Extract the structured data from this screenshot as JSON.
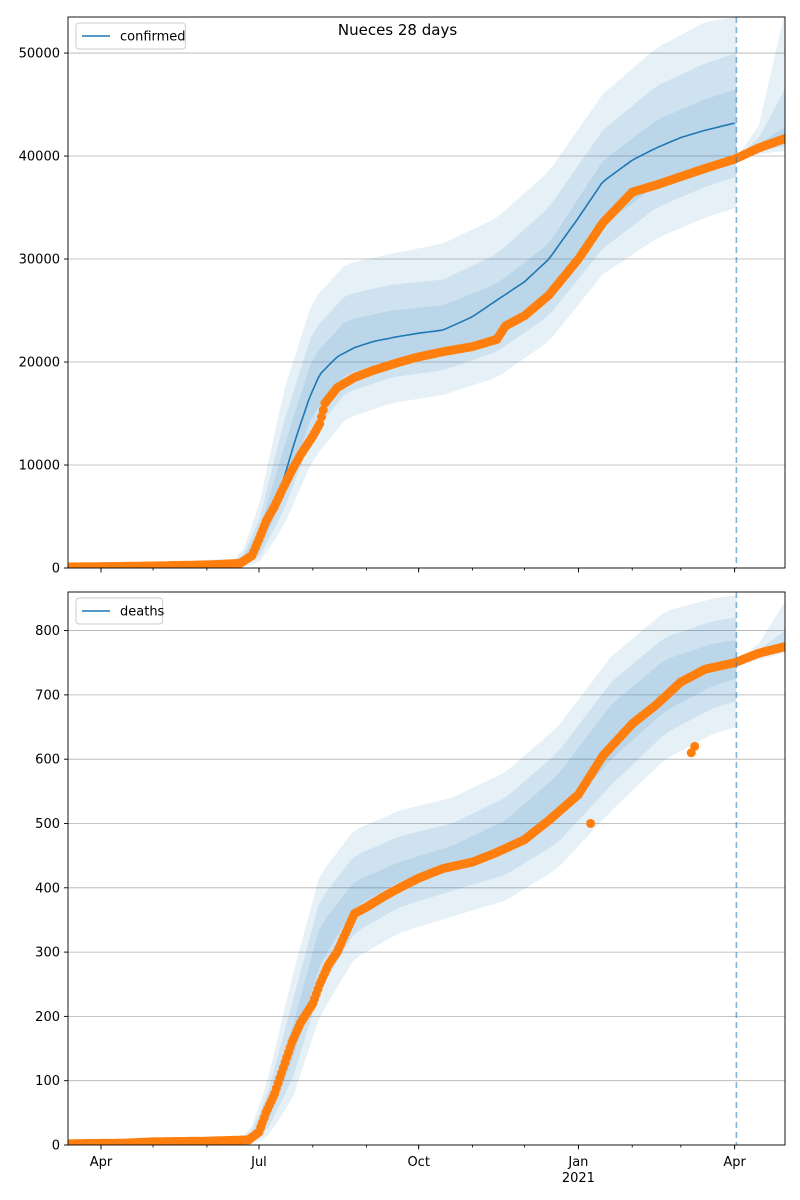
{
  "figure": {
    "title": "Nueces 28 days"
  },
  "chart_data": [
    {
      "type": "line",
      "legend": {
        "entries": [
          "confirmed"
        ],
        "placement": "upper-left"
      },
      "x_tick_labels": [
        "Apr",
        "Jul",
        "Oct",
        "Jan",
        "Apr"
      ],
      "x_tick_sublabels": [
        "",
        "",
        "",
        "2021",
        ""
      ],
      "xlim": [
        "2020-03-13",
        "2021-04-30"
      ],
      "ylim": [
        0,
        53500
      ],
      "y_ticks": [
        0,
        10000,
        20000,
        30000,
        40000,
        50000
      ],
      "grid": "y",
      "forecast_start": "2021-04-02",
      "model": {
        "name": "confirmed",
        "color": "#1f77b4",
        "x": [
          "2020-03-13",
          "2020-06-15",
          "2020-06-25",
          "2020-07-01",
          "2020-07-08",
          "2020-07-15",
          "2020-07-22",
          "2020-07-30",
          "2020-08-05",
          "2020-08-15",
          "2020-08-25",
          "2020-09-05",
          "2020-09-20",
          "2020-10-01",
          "2020-10-15",
          "2020-11-01",
          "2020-11-15",
          "2020-12-01",
          "2020-12-15",
          "2021-01-01",
          "2021-01-15",
          "2021-02-01",
          "2021-02-15",
          "2021-03-01",
          "2021-03-15",
          "2021-04-01"
        ],
        "y": [
          100,
          300,
          600,
          2200,
          4800,
          8500,
          12500,
          16500,
          18800,
          20500,
          21400,
          22000,
          22500,
          22800,
          23100,
          24400,
          26000,
          27800,
          30000,
          34000,
          37500,
          39600,
          40800,
          41800,
          42500,
          43200
        ]
      },
      "bands": [
        {
          "x": [
            "2020-03-13",
            "2020-06-20",
            "2020-07-01",
            "2020-07-15",
            "2020-08-01",
            "2020-08-20",
            "2020-09-15",
            "2020-10-15",
            "2020-11-15",
            "2020-12-15",
            "2021-01-15",
            "2021-02-15",
            "2021-03-15",
            "2021-04-02"
          ],
          "low": [
            0,
            0,
            500,
            4000,
            10500,
            14500,
            16000,
            16800,
            18500,
            22000,
            28500,
            32000,
            34000,
            35000
          ],
          "high": [
            300,
            900,
            6000,
            17000,
            26000,
            29500,
            30500,
            31500,
            34000,
            38500,
            46000,
            50500,
            53000,
            53500
          ]
        },
        {
          "x": [
            "2020-03-13",
            "2020-06-20",
            "2020-07-01",
            "2020-07-15",
            "2020-08-01",
            "2020-08-20",
            "2020-09-15",
            "2020-10-15",
            "2020-11-15",
            "2020-12-15",
            "2021-01-15",
            "2021-02-15",
            "2021-03-15",
            "2021-04-02"
          ],
          "low": [
            0,
            100,
            1000,
            5500,
            13000,
            17000,
            18500,
            19200,
            21000,
            24500,
            31000,
            35000,
            37000,
            38000
          ],
          "high": [
            250,
            700,
            4500,
            14000,
            23000,
            26500,
            27500,
            28000,
            30500,
            35000,
            42500,
            46800,
            49000,
            50000
          ]
        },
        {
          "x": [
            "2020-03-13",
            "2020-06-20",
            "2020-07-01",
            "2020-07-15",
            "2020-08-01",
            "2020-08-20",
            "2020-09-15",
            "2020-10-15",
            "2020-11-15",
            "2020-12-15",
            "2021-01-15",
            "2021-02-15",
            "2021-03-15",
            "2021-04-02"
          ],
          "low": [
            50,
            200,
            1500,
            7000,
            15000,
            18800,
            20200,
            20800,
            22500,
            26300,
            33200,
            37200,
            39300,
            40200
          ],
          "high": [
            200,
            550,
            3500,
            11500,
            20500,
            24000,
            25000,
            25500,
            27600,
            31500,
            39500,
            43500,
            45500,
            46500
          ]
        }
      ],
      "observed": {
        "color": "#ff7f0e",
        "x": [
          "2020-03-13",
          "2020-04-10",
          "2020-05-01",
          "2020-06-01",
          "2020-06-20",
          "2020-06-27",
          "2020-07-01",
          "2020-07-05",
          "2020-07-10",
          "2020-07-15",
          "2020-07-20",
          "2020-07-25",
          "2020-08-01",
          "2020-08-05",
          "2020-08-08",
          "2020-08-15",
          "2020-08-25",
          "2020-09-05",
          "2020-09-20",
          "2020-10-01",
          "2020-10-15",
          "2020-11-01",
          "2020-11-15",
          "2020-11-20",
          "2020-12-01",
          "2020-12-15",
          "2021-01-01",
          "2021-01-15",
          "2021-02-01",
          "2021-02-15",
          "2021-03-01",
          "2021-03-15",
          "2021-04-01",
          "2021-04-15",
          "2021-04-30"
        ],
        "y": [
          100,
          150,
          200,
          300,
          450,
          1200,
          2800,
          4500,
          6000,
          7800,
          9500,
          11000,
          12800,
          14000,
          16000,
          17500,
          18500,
          19200,
          20000,
          20500,
          21000,
          21500,
          22200,
          23500,
          24500,
          26500,
          30000,
          33500,
          36500,
          37200,
          38000,
          38800,
          39700,
          40800,
          41700
        ]
      },
      "projection_bands": [
        {
          "x": [
            "2021-04-02",
            "2021-04-15",
            "2021-04-30"
          ],
          "low": [
            39600,
            40200,
            40500
          ],
          "high": [
            39800,
            43000,
            54000
          ]
        },
        {
          "x": [
            "2021-04-02",
            "2021-04-15",
            "2021-04-30"
          ],
          "low": [
            39700,
            40400,
            41000
          ],
          "high": [
            39800,
            41800,
            46500
          ]
        },
        {
          "x": [
            "2021-04-02",
            "2021-04-15",
            "2021-04-30"
          ],
          "low": [
            39750,
            40600,
            41400
          ],
          "high": [
            39800,
            41200,
            42800
          ]
        }
      ]
    },
    {
      "type": "line",
      "legend": {
        "entries": [
          "deaths"
        ],
        "placement": "upper-left"
      },
      "x_tick_labels": [
        "Apr",
        "Jul",
        "Oct",
        "Jan",
        "Apr"
      ],
      "x_tick_sublabels": [
        "",
        "",
        "",
        "2021",
        ""
      ],
      "xlim": [
        "2020-03-13",
        "2021-04-30"
      ],
      "ylim": [
        0,
        860
      ],
      "y_ticks": [
        0,
        100,
        200,
        300,
        400,
        500,
        600,
        700,
        800
      ],
      "grid": "y",
      "forecast_start": "2021-04-02",
      "model": {
        "name": "deaths",
        "color": "#1f77b4",
        "x": [],
        "y": []
      },
      "bands": [
        {
          "x": [
            "2020-03-13",
            "2020-06-25",
            "2020-07-05",
            "2020-07-20",
            "2020-08-05",
            "2020-08-25",
            "2020-09-20",
            "2020-10-20",
            "2020-11-20",
            "2020-12-20",
            "2021-01-20",
            "2021-02-20",
            "2021-03-20",
            "2021-04-02"
          ],
          "low": [
            0,
            0,
            10,
            70,
            200,
            290,
            330,
            355,
            380,
            430,
            520,
            600,
            640,
            650
          ],
          "high": [
            5,
            15,
            90,
            260,
            420,
            490,
            520,
            540,
            580,
            650,
            760,
            830,
            850,
            855
          ]
        },
        {
          "x": [
            "2020-03-13",
            "2020-06-25",
            "2020-07-05",
            "2020-07-20",
            "2020-08-05",
            "2020-08-25",
            "2020-09-20",
            "2020-10-20",
            "2020-11-20",
            "2020-12-20",
            "2021-01-20",
            "2021-02-20",
            "2021-03-20",
            "2021-04-02"
          ],
          "low": [
            0,
            2,
            20,
            100,
            240,
            330,
            370,
            395,
            420,
            470,
            560,
            640,
            680,
            690
          ],
          "high": [
            4,
            12,
            70,
            220,
            380,
            450,
            480,
            500,
            540,
            610,
            720,
            790,
            815,
            820
          ]
        },
        {
          "x": [
            "2020-03-13",
            "2020-06-25",
            "2020-07-05",
            "2020-07-20",
            "2020-08-05",
            "2020-08-25",
            "2020-09-20",
            "2020-10-20",
            "2020-11-20",
            "2020-12-20",
            "2021-01-20",
            "2021-02-20",
            "2021-03-20",
            "2021-04-02"
          ],
          "low": [
            1,
            4,
            30,
            130,
            280,
            370,
            410,
            430,
            455,
            505,
            600,
            675,
            715,
            725
          ],
          "high": [
            3,
            9,
            55,
            180,
            340,
            410,
            440,
            465,
            505,
            575,
            685,
            755,
            780,
            785
          ]
        }
      ],
      "observed": {
        "color": "#ff7f0e",
        "x": [
          "2020-03-13",
          "2020-04-15",
          "2020-05-01",
          "2020-06-01",
          "2020-06-25",
          "2020-07-01",
          "2020-07-05",
          "2020-07-10",
          "2020-07-15",
          "2020-07-20",
          "2020-07-25",
          "2020-08-01",
          "2020-08-05",
          "2020-08-10",
          "2020-08-15",
          "2020-08-20",
          "2020-08-25",
          "2020-09-01",
          "2020-09-10",
          "2020-09-20",
          "2020-10-01",
          "2020-10-15",
          "2020-11-01",
          "2020-11-15",
          "2020-12-01",
          "2020-12-15",
          "2021-01-01",
          "2021-01-15",
          "2021-02-01",
          "2021-02-15",
          "2021-03-01",
          "2021-03-15",
          "2021-04-01",
          "2021-04-15",
          "2021-04-30"
        ],
        "y": [
          2,
          3,
          5,
          6,
          8,
          20,
          50,
          80,
          120,
          160,
          190,
          220,
          250,
          280,
          300,
          330,
          360,
          370,
          385,
          400,
          415,
          430,
          440,
          455,
          475,
          505,
          545,
          605,
          655,
          685,
          720,
          740,
          750,
          765,
          775
        ],
        "outliers": {
          "x": [
            "2021-01-08",
            "2021-03-07",
            "2021-03-09"
          ],
          "y": [
            500,
            610,
            620
          ]
        }
      },
      "projection_bands": [
        {
          "x": [
            "2021-04-02",
            "2021-04-15",
            "2021-04-30"
          ],
          "low": [
            748,
            755,
            765
          ],
          "high": [
            752,
            780,
            845
          ]
        },
        {
          "x": [
            "2021-04-02",
            "2021-04-15",
            "2021-04-30"
          ],
          "low": [
            749,
            758,
            768
          ],
          "high": [
            751,
            770,
            800
          ]
        },
        {
          "x": [
            "2021-04-02",
            "2021-04-15",
            "2021-04-30"
          ],
          "low": [
            749,
            760,
            770
          ],
          "high": [
            751,
            766,
            785
          ]
        }
      ]
    }
  ]
}
